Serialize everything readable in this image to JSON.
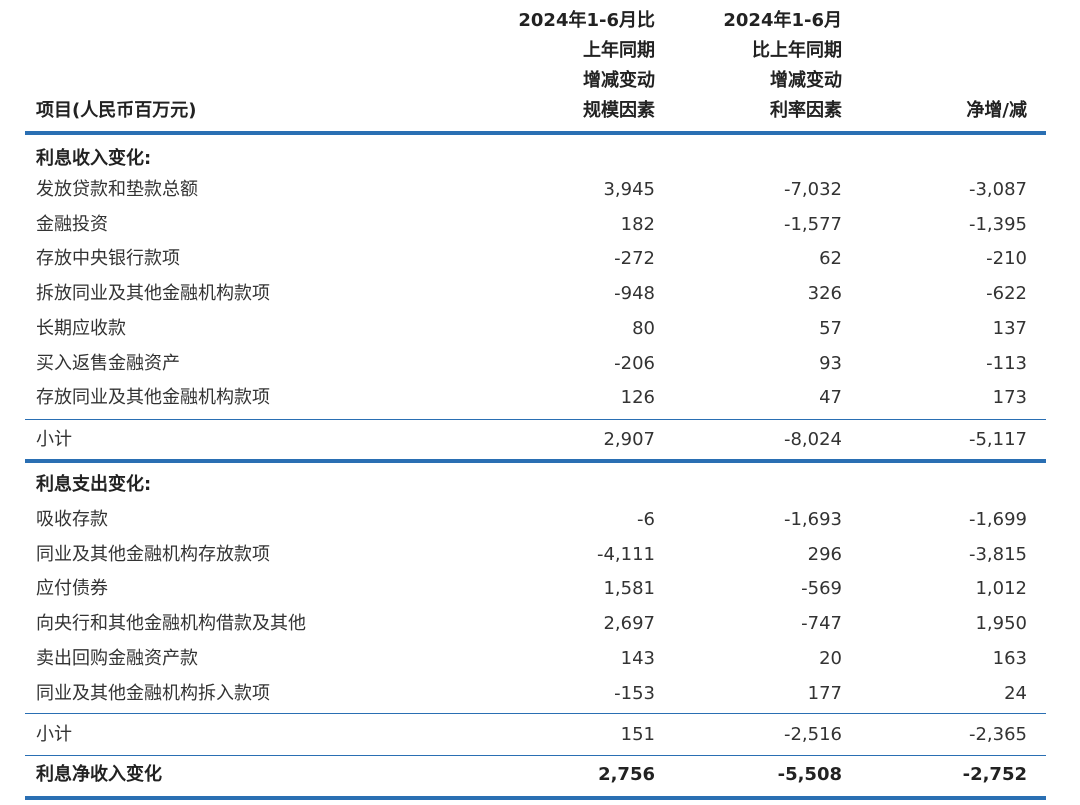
{
  "header": {
    "item": "项目(人民币百万元)",
    "col_volume": "2024年1-6月比\n上年同期\n增减变动\n规模因素",
    "col_rate": "2024年1-6月\n比上年同期\n增减变动\n利率因素",
    "col_net": "净增/减"
  },
  "income": {
    "title": "利息收入变化:",
    "rows": [
      {
        "label": "发放贷款和垫款总额",
        "volume": "3,945",
        "rate": "-7,032",
        "net": "-3,087"
      },
      {
        "label": "金融投资",
        "volume": "182",
        "rate": "-1,577",
        "net": "-1,395"
      },
      {
        "label": "存放中央银行款项",
        "volume": "-272",
        "rate": "62",
        "net": "-210"
      },
      {
        "label": "拆放同业及其他金融机构款项",
        "volume": "-948",
        "rate": "326",
        "net": "-622"
      },
      {
        "label": "长期应收款",
        "volume": "80",
        "rate": "57",
        "net": "137"
      },
      {
        "label": "买入返售金融资产",
        "volume": "-206",
        "rate": "93",
        "net": "-113"
      },
      {
        "label": "存放同业及其他金融机构款项",
        "volume": "126",
        "rate": "47",
        "net": "173"
      }
    ],
    "subtotal": {
      "label": "小计",
      "volume": "2,907",
      "rate": "-8,024",
      "net": "-5,117"
    }
  },
  "expense": {
    "title": "利息支出变化:",
    "rows": [
      {
        "label": "吸收存款",
        "volume": "-6",
        "rate": "-1,693",
        "net": "-1,699"
      },
      {
        "label": "同业及其他金融机构存放款项",
        "volume": "-4,111",
        "rate": "296",
        "net": "-3,815"
      },
      {
        "label": "应付债券",
        "volume": "1,581",
        "rate": "-569",
        "net": "1,012"
      },
      {
        "label": "向央行和其他金融机构借款及其他",
        "volume": "2,697",
        "rate": "-747",
        "net": "1,950"
      },
      {
        "label": "卖出回购金融资产款",
        "volume": "143",
        "rate": "20",
        "net": "163"
      },
      {
        "label": "同业及其他金融机构拆入款项",
        "volume": "-153",
        "rate": "177",
        "net": "24"
      }
    ],
    "subtotal": {
      "label": "小计",
      "volume": "151",
      "rate": "-2,516",
      "net": "-2,365"
    }
  },
  "net_total": {
    "label": "利息净收入变化",
    "volume": "2,756",
    "rate": "-5,508",
    "net": "-2,752"
  }
}
